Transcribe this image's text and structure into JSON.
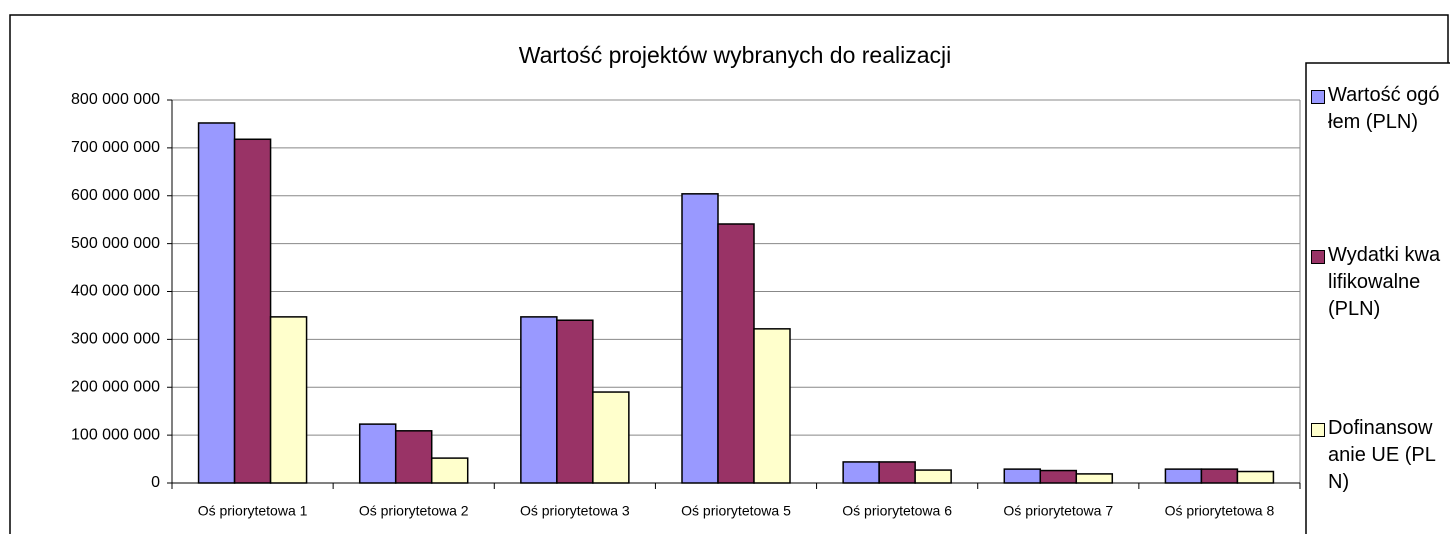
{
  "chart_data": {
    "type": "bar",
    "title": "Wartość projektów wybranych do realizacji",
    "categories": [
      "Oś priorytetowa 1",
      "Oś priorytetowa 2",
      "Oś priorytetowa 3",
      "Oś priorytetowa 5",
      "Oś priorytetowa 6",
      "Oś priorytetowa 7",
      "Oś priorytetowa 8"
    ],
    "series": [
      {
        "name": "Wartość ogółem (PLN)",
        "color": "#9999ff",
        "values": [
          752000000,
          123000000,
          347000000,
          604000000,
          44000000,
          29000000,
          29000000
        ]
      },
      {
        "name": "Wydatki kwalifikowalne (PLN)",
        "color": "#993366",
        "values": [
          718000000,
          109000000,
          340000000,
          541000000,
          44000000,
          26000000,
          29000000
        ]
      },
      {
        "name": "Dofinansowanie UE (PLN)",
        "color": "#ffffcc",
        "values": [
          347000000,
          52000000,
          190000000,
          322000000,
          27000000,
          19000000,
          24000000
        ]
      }
    ],
    "ylim": [
      0,
      800000000
    ],
    "yticks": [
      0,
      {
        "value": 100000000,
        "label": "100 000 000"
      },
      {
        "value": 200000000,
        "label": "200 000 000"
      },
      {
        "value": 300000000,
        "label": "300 000 000"
      },
      {
        "value": 400000000,
        "label": "400 000 000"
      },
      {
        "value": 500000000,
        "label": "500 000 000"
      },
      {
        "value": 600000000,
        "label": "600 000 000"
      },
      {
        "value": 700000000,
        "label": "700 000 000"
      },
      {
        "value": 800000000,
        "label": "800 000 000"
      }
    ],
    "grid": true,
    "legend": "right"
  }
}
